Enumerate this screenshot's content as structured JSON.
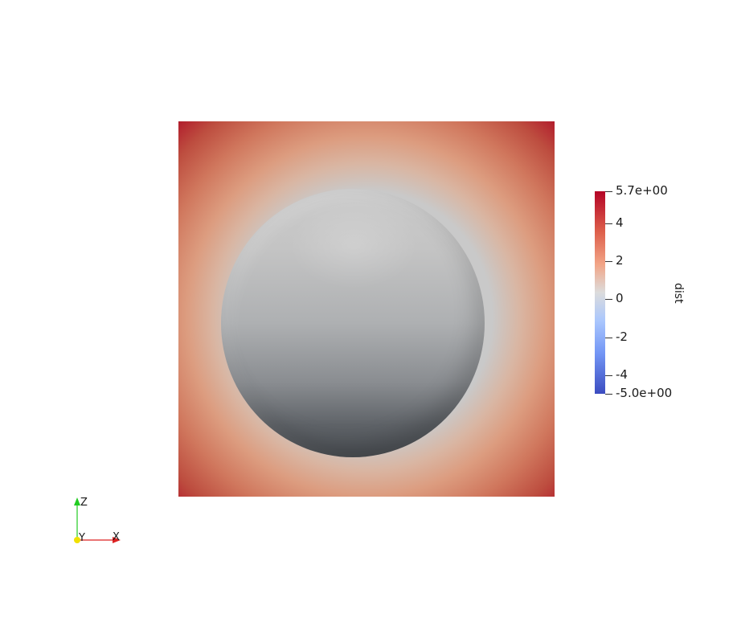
{
  "colorbar": {
    "title": "dist",
    "max_label": "5.7e+00",
    "min_label": "-5.0e+00",
    "ticks": [
      "4",
      "2",
      "0",
      "-2",
      "-4"
    ],
    "range": [
      -5.0,
      5.7
    ],
    "colors": {
      "high": "#b40426",
      "mid": "#dcdcdc",
      "low": "#3b4cc0"
    }
  },
  "axes": {
    "z": "Z",
    "y": "Y",
    "x": "X"
  },
  "scene": {
    "plane_edge_color": "#b1192b",
    "sphere_color": "#c4c4c4"
  }
}
